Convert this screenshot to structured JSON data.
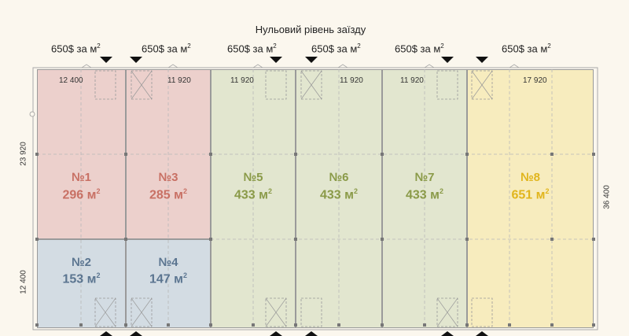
{
  "title": "Нульовий рівень заїзду",
  "prices": [
    {
      "text": "650$ за м",
      "sup": "2"
    },
    {
      "text": "650$ за м",
      "sup": "2"
    },
    {
      "text": "650$ за м",
      "sup": "2"
    },
    {
      "text": "650$ за м",
      "sup": "2"
    },
    {
      "text": "650$ за м",
      "sup": "2"
    },
    {
      "text": "650$ за м",
      "sup": "2"
    }
  ],
  "top_dimensions": [
    "12 400",
    "11 920",
    "11 920",
    "11 920",
    "11 920",
    "17 920"
  ],
  "side_dimensions": {
    "left_upper": "23 920",
    "left_lower": "12 400",
    "right": "36 400"
  },
  "units": [
    {
      "number": "№1",
      "area": "296 м",
      "sup": "2",
      "color": "#c87064",
      "fill": "#ecd0cc"
    },
    {
      "number": "№3",
      "area": "285 м",
      "sup": "2",
      "color": "#c87064",
      "fill": "#ecd0cc"
    },
    {
      "number": "№5",
      "area": "433 м",
      "sup": "2",
      "color": "#8a9a48",
      "fill": "#e2e6cf"
    },
    {
      "number": "№6",
      "area": "433 м",
      "sup": "2",
      "color": "#8a9a48",
      "fill": "#e2e6cf"
    },
    {
      "number": "№7",
      "area": "433 м",
      "sup": "2",
      "color": "#8a9a48",
      "fill": "#e2e6cf"
    },
    {
      "number": "№8",
      "area": "651 м",
      "sup": "2",
      "color": "#e1b51c",
      "fill": "#f7ecbe"
    },
    {
      "number": "№2",
      "area": "153 м",
      "sup": "2",
      "color": "#5b7590",
      "fill": "#d3dce3"
    },
    {
      "number": "№4",
      "area": "147 м",
      "sup": "2",
      "color": "#5b7590",
      "fill": "#d3dce3"
    }
  ]
}
